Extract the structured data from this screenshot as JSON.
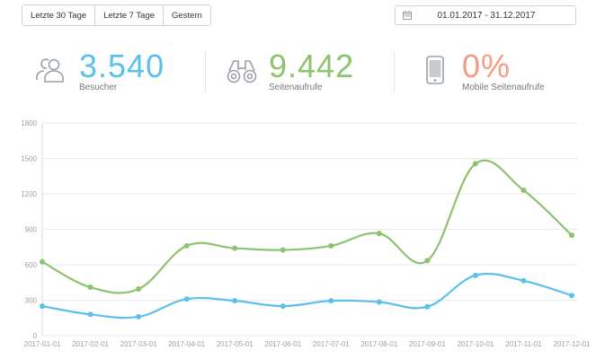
{
  "filters": {
    "last30": "Letzte 30 Tage",
    "last7": "Letzte 7 Tage",
    "yesterday": "Gestern"
  },
  "daterange": {
    "value": "01.01.2017 - 31.12.2017",
    "icon": "calendar-icon"
  },
  "stats": [
    {
      "value": "3.540",
      "label": "Besucher",
      "color": "#5bc0eb",
      "icon": "users-icon"
    },
    {
      "value": "9.442",
      "label": "Seitenaufrufe",
      "color": "#8dc26f",
      "icon": "binoculars-icon"
    },
    {
      "value": "0%",
      "label": "Mobile Seitenaufrufe",
      "color": "#f59a83",
      "icon": "mobile-phone-icon"
    }
  ],
  "chart_data": {
    "type": "line",
    "categories": [
      "2017-01-01",
      "2017-02-01",
      "2017-03-01",
      "2017-04-01",
      "2017-05-01",
      "2017-06-01",
      "2017-07-01",
      "2017-08-01",
      "2017-09-01",
      "2017-10-01",
      "2017-11-01",
      "2017-12-01"
    ],
    "series": [
      {
        "color": "#8dc26f",
        "values": [
          625,
          410,
          395,
          760,
          740,
          725,
          760,
          865,
          635,
          1455,
          1230,
          850
        ]
      },
      {
        "color": "#5bc0eb",
        "values": [
          250,
          180,
          160,
          310,
          295,
          250,
          295,
          285,
          245,
          510,
          465,
          340
        ]
      }
    ],
    "ylim": [
      0,
      1800
    ],
    "yticks": [
      "0",
      "300",
      "600",
      "900",
      "1200",
      "1500",
      "1800"
    ],
    "grid": true
  }
}
